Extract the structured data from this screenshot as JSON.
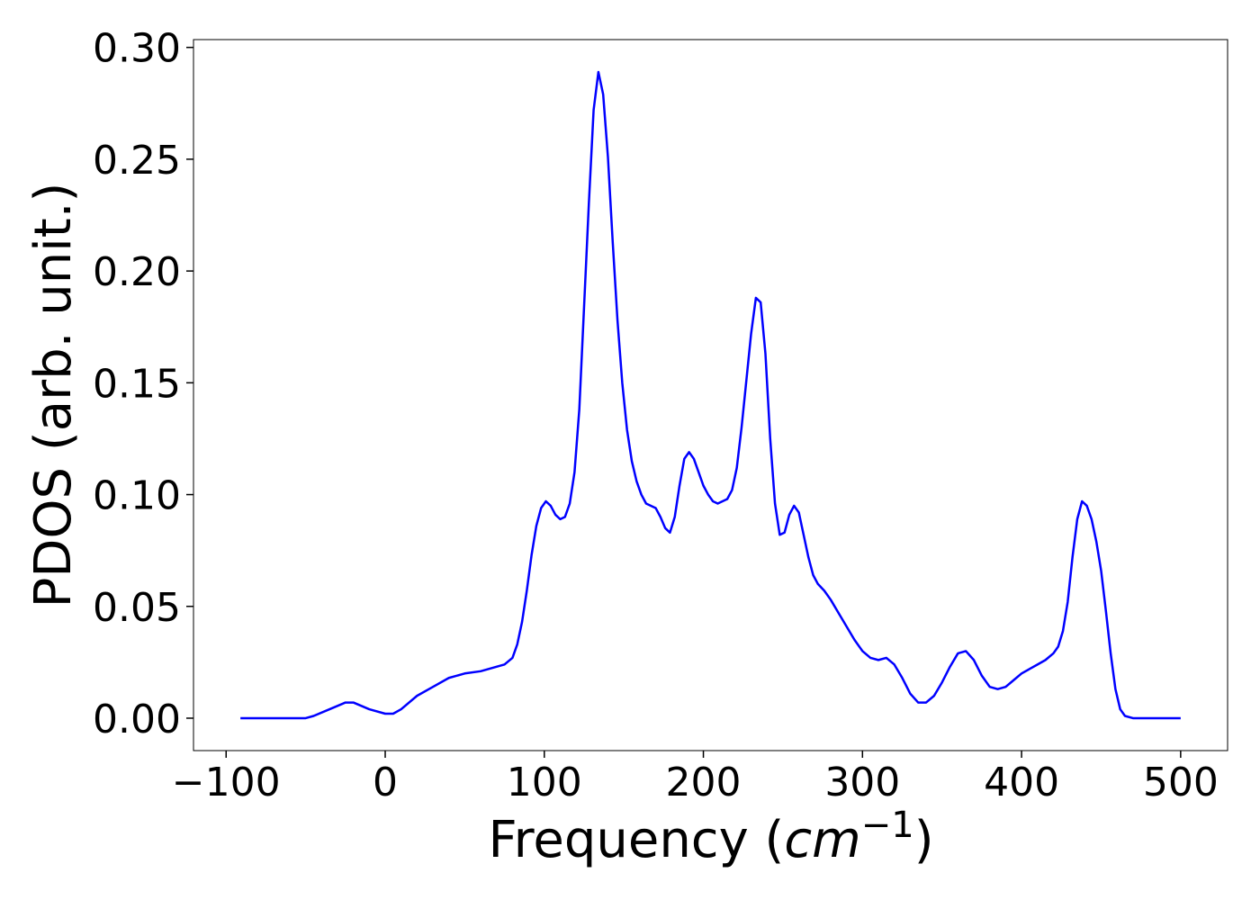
{
  "chart_data": {
    "type": "line",
    "xlabel_parts": [
      "Frequency (",
      "cm",
      "−1",
      ")"
    ],
    "ylabel": "PDOS (arb. unit.)",
    "xlim": [
      -120.5,
      529.5
    ],
    "ylim": [
      -0.0145,
      0.3035
    ],
    "xticks": [
      {
        "value": -100,
        "label": "−100"
      },
      0,
      100,
      200,
      300,
      400,
      500
    ],
    "yticks": [
      {
        "value": 0,
        "label": "0.00"
      },
      {
        "value": 0.05,
        "label": "0.05"
      },
      {
        "value": 0.1,
        "label": "0.10"
      },
      {
        "value": 0.15,
        "label": "0.15"
      },
      {
        "value": 0.2,
        "label": "0.20"
      },
      {
        "value": 0.25,
        "label": "0.25"
      },
      {
        "value": 0.3,
        "label": "0.30"
      }
    ],
    "grid": false,
    "x": [
      -91,
      -50,
      -45,
      -35,
      -25,
      -20,
      -10,
      0,
      5,
      10,
      20,
      30,
      40,
      50,
      60,
      70,
      75,
      80,
      83,
      86,
      89,
      92,
      95,
      98,
      101,
      104,
      107,
      110,
      113,
      116,
      119,
      122,
      125,
      128,
      131,
      134,
      137,
      140,
      143,
      146,
      149,
      152,
      155,
      158,
      161,
      164,
      167,
      170,
      173,
      176,
      179,
      182,
      185,
      188,
      191,
      194,
      197,
      200,
      203,
      206,
      209,
      212,
      215,
      218,
      221,
      224,
      227,
      230,
      233,
      236,
      239,
      242,
      245,
      248,
      251,
      254,
      257,
      260,
      263,
      266,
      269,
      272,
      276,
      280,
      285,
      290,
      295,
      300,
      305,
      310,
      315,
      320,
      325,
      330,
      335,
      340,
      345,
      350,
      355,
      360,
      365,
      370,
      375,
      380,
      385,
      390,
      395,
      400,
      405,
      410,
      415,
      420,
      423,
      426,
      429,
      432,
      435,
      438,
      441,
      444,
      447,
      450,
      453,
      456,
      459,
      462,
      465,
      470,
      480,
      500
    ],
    "series": [
      {
        "color": "#0000ff",
        "values": [
          0,
          0,
          0.001,
          0.004,
          0.007,
          0.007,
          0.004,
          0.002,
          0.002,
          0.004,
          0.01,
          0.014,
          0.018,
          0.02,
          0.021,
          0.023,
          0.024,
          0.027,
          0.033,
          0.043,
          0.057,
          0.073,
          0.086,
          0.094,
          0.097,
          0.095,
          0.091,
          0.089,
          0.09,
          0.096,
          0.11,
          0.138,
          0.184,
          0.23,
          0.272,
          0.289,
          0.279,
          0.251,
          0.213,
          0.178,
          0.15,
          0.129,
          0.115,
          0.106,
          0.1,
          0.096,
          0.095,
          0.094,
          0.09,
          0.085,
          0.083,
          0.09,
          0.104,
          0.116,
          0.119,
          0.116,
          0.11,
          0.104,
          0.1,
          0.097,
          0.096,
          0.097,
          0.098,
          0.102,
          0.112,
          0.13,
          0.151,
          0.172,
          0.188,
          0.186,
          0.163,
          0.125,
          0.096,
          0.082,
          0.083,
          0.091,
          0.095,
          0.092,
          0.082,
          0.072,
          0.064,
          0.06,
          0.057,
          0.053,
          0.047,
          0.041,
          0.035,
          0.03,
          0.027,
          0.026,
          0.027,
          0.024,
          0.018,
          0.011,
          0.007,
          0.007,
          0.01,
          0.016,
          0.023,
          0.029,
          0.03,
          0.026,
          0.019,
          0.014,
          0.013,
          0.014,
          0.017,
          0.02,
          0.022,
          0.024,
          0.026,
          0.029,
          0.032,
          0.039,
          0.052,
          0.072,
          0.089,
          0.097,
          0.095,
          0.089,
          0.079,
          0.066,
          0.048,
          0.029,
          0.013,
          0.004,
          0.001,
          0,
          0,
          0
        ]
      }
    ]
  }
}
